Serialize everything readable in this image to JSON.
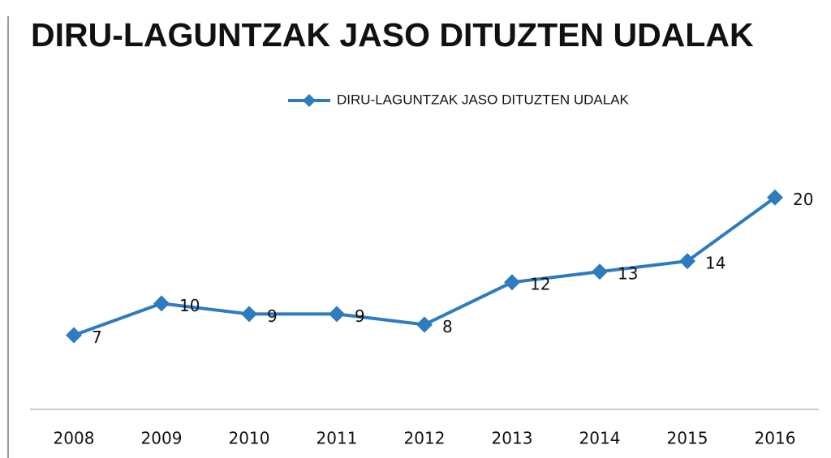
{
  "chart_data": {
    "type": "line",
    "title": "DIRU-LAGUNTZAK JASO DITUZTEN UDALAK",
    "categories": [
      "2008",
      "2009",
      "2010",
      "2011",
      "2012",
      "2013",
      "2014",
      "2015",
      "2016"
    ],
    "series": [
      {
        "name": "DIRU-LAGUNTZAK JASO DITUZTEN UDALAK",
        "color": "#2e7bbf",
        "values": [
          7,
          10,
          9,
          9,
          8,
          12,
          13,
          14,
          20
        ]
      }
    ],
    "ylim": [
      0,
      30
    ],
    "legend": "top"
  }
}
